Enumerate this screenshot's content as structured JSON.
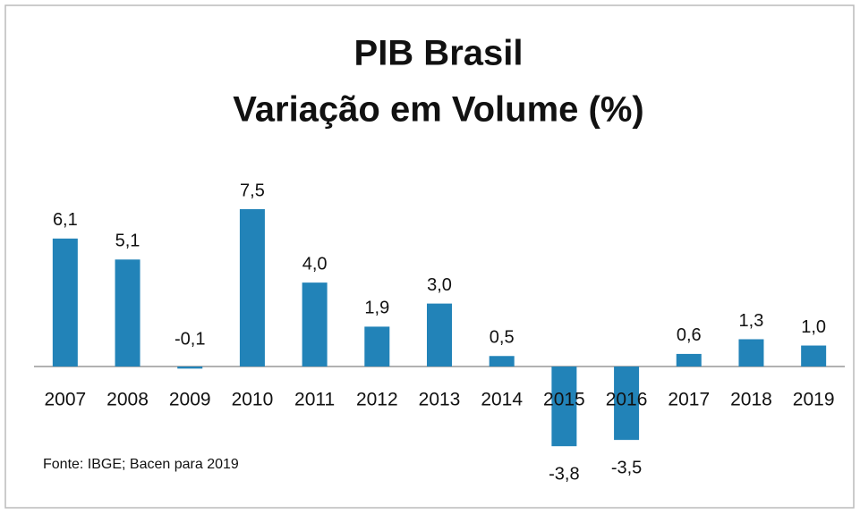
{
  "chart_data": {
    "type": "bar",
    "title": [
      "PIB Brasil",
      "Variação em Volume (%)"
    ],
    "note": "Fonte: IBGE; Bacen para 2019",
    "categories": [
      "2007",
      "2008",
      "2009",
      "2010",
      "2011",
      "2012",
      "2013",
      "2014",
      "2015",
      "2016",
      "2017",
      "2018",
      "2019"
    ],
    "values": [
      6.1,
      5.1,
      -0.1,
      7.5,
      4.0,
      1.9,
      3.0,
      0.5,
      -3.8,
      -3.5,
      0.6,
      1.3,
      1.0
    ],
    "value_labels": [
      "6,1",
      "5,1",
      "-0,1",
      "7,5",
      "4,0",
      "1,9",
      "3,0",
      "0,5",
      "-3,8",
      "-3,5",
      "0,6",
      "1,3",
      "1,0"
    ],
    "color": "#2283b8"
  }
}
